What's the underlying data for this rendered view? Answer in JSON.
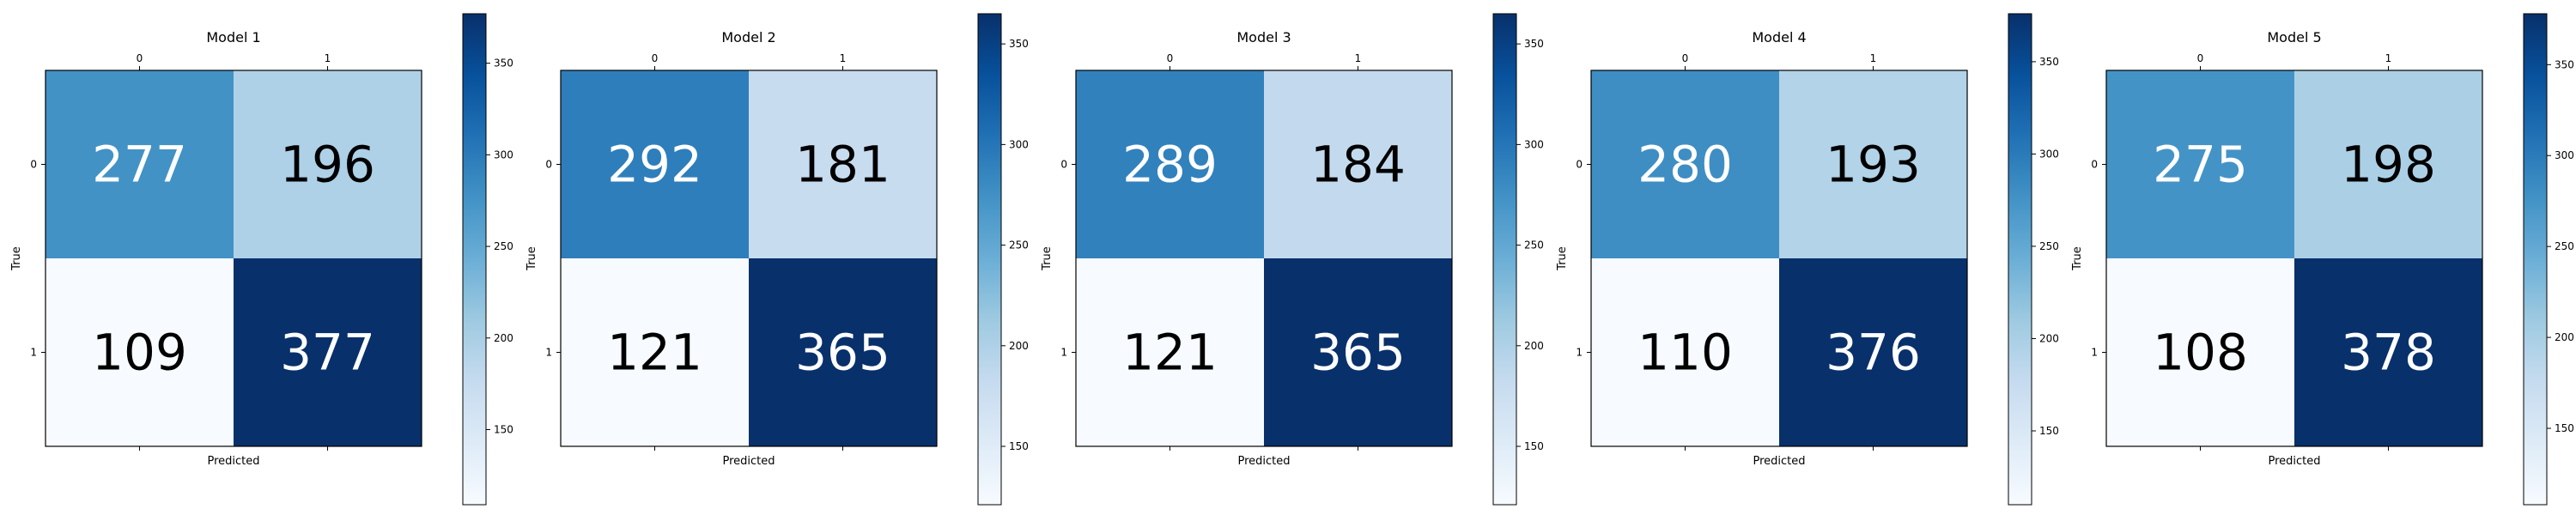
{
  "chart_data": [
    {
      "type": "heatmap",
      "title": "Model 1",
      "xlabel": "Predicted",
      "ylabel": "True",
      "x_tick_labels": [
        "0",
        "1"
      ],
      "y_tick_labels": [
        "0",
        "1"
      ],
      "values": [
        [
          277,
          196
        ],
        [
          109,
          377
        ]
      ],
      "colormap": "Blues",
      "colorbar": {
        "range": [
          109,
          377
        ],
        "ticks": [
          150,
          200,
          250,
          300,
          350
        ]
      }
    },
    {
      "type": "heatmap",
      "title": "Model 2",
      "xlabel": "Predicted",
      "ylabel": "True",
      "x_tick_labels": [
        "0",
        "1"
      ],
      "y_tick_labels": [
        "0",
        "1"
      ],
      "values": [
        [
          292,
          181
        ],
        [
          121,
          365
        ]
      ],
      "colormap": "Blues",
      "colorbar": {
        "range": [
          121,
          365
        ],
        "ticks": [
          150,
          200,
          250,
          300,
          350
        ]
      }
    },
    {
      "type": "heatmap",
      "title": "Model 3",
      "xlabel": "Predicted",
      "ylabel": "True",
      "x_tick_labels": [
        "0",
        "1"
      ],
      "y_tick_labels": [
        "0",
        "1"
      ],
      "values": [
        [
          289,
          184
        ],
        [
          121,
          365
        ]
      ],
      "colormap": "Blues",
      "colorbar": {
        "range": [
          121,
          365
        ],
        "ticks": [
          150,
          200,
          250,
          300,
          350
        ]
      }
    },
    {
      "type": "heatmap",
      "title": "Model 4",
      "xlabel": "Predicted",
      "ylabel": "True",
      "x_tick_labels": [
        "0",
        "1"
      ],
      "y_tick_labels": [
        "0",
        "1"
      ],
      "values": [
        [
          280,
          193
        ],
        [
          110,
          376
        ]
      ],
      "colormap": "Blues",
      "colorbar": {
        "range": [
          110,
          376
        ],
        "ticks": [
          150,
          200,
          250,
          300,
          350
        ]
      }
    },
    {
      "type": "heatmap",
      "title": "Model 5",
      "xlabel": "Predicted",
      "ylabel": "True",
      "x_tick_labels": [
        "0",
        "1"
      ],
      "y_tick_labels": [
        "0",
        "1"
      ],
      "values": [
        [
          275,
          198
        ],
        [
          108,
          378
        ]
      ],
      "colormap": "Blues",
      "colorbar": {
        "range": [
          108,
          378
        ],
        "ticks": [
          150,
          200,
          250,
          300,
          350
        ]
      }
    }
  ]
}
